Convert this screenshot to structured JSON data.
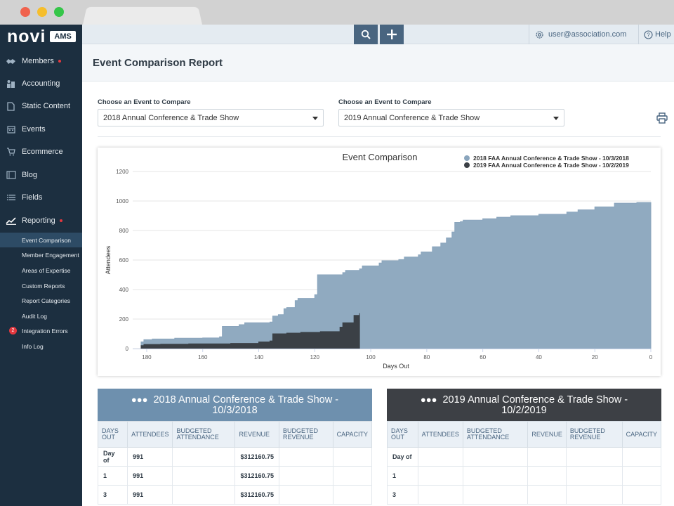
{
  "app": {
    "logo_text": "novi",
    "logo_badge": "AMS"
  },
  "sidebar": {
    "items": [
      {
        "label": "Members",
        "icon": "handshake-icon",
        "alert": true
      },
      {
        "label": "Accounting",
        "icon": "accounting-icon",
        "alert": false
      },
      {
        "label": "Static Content",
        "icon": "document-icon",
        "alert": false
      },
      {
        "label": "Events",
        "icon": "calendar-icon",
        "alert": false
      },
      {
        "label": "Ecommerce",
        "icon": "cart-icon",
        "alert": false
      },
      {
        "label": "Blog",
        "icon": "blog-icon",
        "alert": false
      },
      {
        "label": "Fields",
        "icon": "list-icon",
        "alert": false
      },
      {
        "label": "Reporting",
        "icon": "chart-line-icon",
        "alert": true
      }
    ],
    "reporting_sub": [
      {
        "label": "Event Comparison",
        "active": true
      },
      {
        "label": "Member Engagement",
        "active": false
      },
      {
        "label": "Areas of Expertise",
        "active": false
      },
      {
        "label": "Custom Reports",
        "active": false
      },
      {
        "label": "Report Categories",
        "active": false
      },
      {
        "label": "Audit Log",
        "active": false
      },
      {
        "label": "Integration Errors",
        "active": false,
        "badge": "2"
      },
      {
        "label": "Info Log",
        "active": false
      }
    ]
  },
  "topbar": {
    "user_email": "user@association.com",
    "help_label": "Help"
  },
  "page": {
    "title": "Event Comparison Report"
  },
  "filters": {
    "left": {
      "label": "Choose an Event to Compare",
      "value": "2018 Annual Conference & Trade Show"
    },
    "right": {
      "label": "Choose an Event to Compare",
      "value": "2019 Annual Conference & Trade Show"
    }
  },
  "chart_data": {
    "type": "area",
    "title": "Event Comparison",
    "xlabel": "Days Out",
    "ylabel": "Attendees",
    "xlim": [
      185,
      0
    ],
    "ylim": [
      0,
      1200
    ],
    "x_ticks": [
      180,
      160,
      140,
      120,
      100,
      80,
      60,
      40,
      20,
      0
    ],
    "y_ticks": [
      0,
      200,
      400,
      600,
      800,
      1000,
      1200
    ],
    "grid": true,
    "legend_position": "top-right",
    "series": [
      {
        "name": "2018 FAA Annual Conference & Trade Show - 10/3/2018",
        "color": "#8aa5bd",
        "x": [
          182,
          181,
          178,
          170,
          160,
          154,
          153,
          147,
          145,
          136,
          135,
          133,
          131,
          130,
          127,
          126,
          120,
          119,
          110,
          109,
          104,
          103,
          97,
          96,
          90,
          88,
          83,
          82,
          78,
          75,
          73,
          71,
          70,
          68,
          67,
          60,
          55,
          50,
          40,
          30,
          26,
          20,
          13,
          5,
          0
        ],
        "y": [
          45,
          60,
          65,
          70,
          72,
          80,
          150,
          162,
          175,
          180,
          220,
          230,
          270,
          278,
          325,
          340,
          365,
          500,
          515,
          530,
          540,
          560,
          580,
          595,
          603,
          620,
          635,
          655,
          690,
          715,
          750,
          790,
          855,
          860,
          870,
          880,
          890,
          900,
          910,
          925,
          940,
          960,
          985,
          990,
          992
        ]
      },
      {
        "name": "2019 FAA Annual Conference & Trade Show - 10/2/2019",
        "color": "#3b4046",
        "x": [
          182,
          181,
          175,
          165,
          150,
          140,
          136,
          135,
          130,
          125,
          118,
          111,
          110,
          106,
          104
        ],
        "y": [
          20,
          28,
          30,
          32,
          35,
          45,
          52,
          100,
          105,
          110,
          115,
          145,
          175,
          225,
          240
        ]
      }
    ]
  },
  "tables": {
    "columns": [
      "DAYS OUT",
      "ATTENDEES",
      "BUDGETED ATTENDANCE",
      "REVENUE",
      "BUDGETED REVENUE",
      "CAPACITY"
    ],
    "left": {
      "title_line1": "2018 Annual Conference & Trade Show -",
      "title_line2": "10/3/2018",
      "header_color": "#6e90ae",
      "rows": [
        {
          "days_out": "Day of",
          "attendees": "991",
          "budgeted_attendance": "",
          "revenue": "$312160.75",
          "budgeted_revenue": "",
          "capacity": ""
        },
        {
          "days_out": "1",
          "attendees": "991",
          "budgeted_attendance": "",
          "revenue": "$312160.75",
          "budgeted_revenue": "",
          "capacity": ""
        },
        {
          "days_out": "3",
          "attendees": "991",
          "budgeted_attendance": "",
          "revenue": "$312160.75",
          "budgeted_revenue": "",
          "capacity": ""
        }
      ]
    },
    "right": {
      "title_line1": "2019 Annual Conference & Trade Show -",
      "title_line2": "10/2/2019",
      "header_color": "#3d4045",
      "rows": [
        {
          "days_out": "Day of",
          "attendees": "",
          "budgeted_attendance": "",
          "revenue": "",
          "budgeted_revenue": "",
          "capacity": ""
        },
        {
          "days_out": "1",
          "attendees": "",
          "budgeted_attendance": "",
          "revenue": "",
          "budgeted_revenue": "",
          "capacity": ""
        },
        {
          "days_out": "3",
          "attendees": "",
          "budgeted_attendance": "",
          "revenue": "",
          "budgeted_revenue": "",
          "capacity": ""
        }
      ]
    }
  }
}
